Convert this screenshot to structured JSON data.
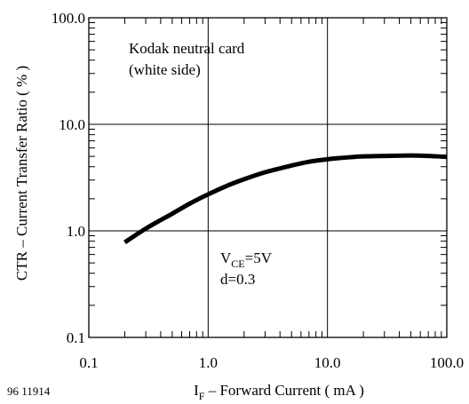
{
  "chart_data": {
    "type": "line",
    "xscale": "log",
    "yscale": "log",
    "xlim": [
      0.1,
      100.0
    ],
    "ylim": [
      0.1,
      100.0
    ],
    "grid": true,
    "xlabel": {
      "prefix": "I",
      "subscript": "F",
      "suffix": " – Forward Current ( mA )"
    },
    "ylabel": "CTR – Current Transfer Ratio ( % )",
    "x_ticks": [
      {
        "value": 0.1,
        "label": "0.1"
      },
      {
        "value": 1.0,
        "label": "1.0"
      },
      {
        "value": 10.0,
        "label": "10.0"
      },
      {
        "value": 100.0,
        "label": "100.0"
      }
    ],
    "y_ticks": [
      {
        "value": 0.1,
        "label": "0.1"
      },
      {
        "value": 1.0,
        "label": "1.0"
      },
      {
        "value": 10.0,
        "label": "10.0"
      },
      {
        "value": 100.0,
        "label": "100.0"
      }
    ],
    "annotations": {
      "card_line1": "Kodak neutral card",
      "card_line2": "(white side)",
      "vce_prefix": "V",
      "vce_subscript": "CE",
      "vce_suffix": "=5V",
      "distance": "d=0.3"
    },
    "series": [
      {
        "color": "#000000",
        "x": [
          0.2,
          0.3,
          0.5,
          0.7,
          1.0,
          1.5,
          2.0,
          3.0,
          5.0,
          7.0,
          10.0,
          15.0,
          20.0,
          30.0,
          50.0,
          70.0,
          100.0
        ],
        "y": [
          0.78,
          1.05,
          1.45,
          1.8,
          2.2,
          2.7,
          3.05,
          3.55,
          4.1,
          4.45,
          4.7,
          4.9,
          5.0,
          5.05,
          5.1,
          5.05,
          4.95
        ]
      }
    ]
  },
  "figure_id": "96 11914"
}
